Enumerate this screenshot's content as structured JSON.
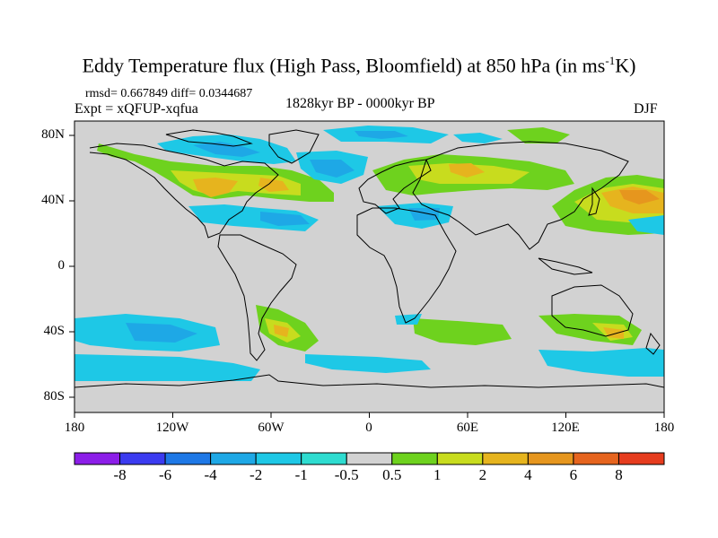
{
  "title_main": "Eddy Temperature flux (High Pass, Bloomfield) at 850 hPa (in ms",
  "title_sup": "-1",
  "title_end": "K)",
  "stats": "rmsd= 0.667849 diff= 0.0344687",
  "expt": "Expt = xQFUP-xqfua",
  "period": "1828kyr BP - 0000kyr BP",
  "season": "DJF",
  "lat_labels": [
    "80N",
    "40N",
    "0",
    "40S",
    "80S"
  ],
  "lon_labels": [
    "180",
    "120W",
    "60W",
    "0",
    "60E",
    "120E",
    "180"
  ],
  "colorbar": {
    "labels": [
      "-8",
      "-6",
      "-4",
      "-2",
      "-1",
      "-0.5",
      "0.5",
      "1",
      "2",
      "4",
      "6",
      "8"
    ],
    "colors": [
      "#8c1ee8",
      "#3b3bf0",
      "#1e78e6",
      "#1ea8e6",
      "#1ec8e6",
      "#2edcd0",
      "#d2d2d2",
      "#6ed21e",
      "#c8dc1e",
      "#e6b41e",
      "#e6961e",
      "#e6641e",
      "#e63c1e"
    ]
  }
}
